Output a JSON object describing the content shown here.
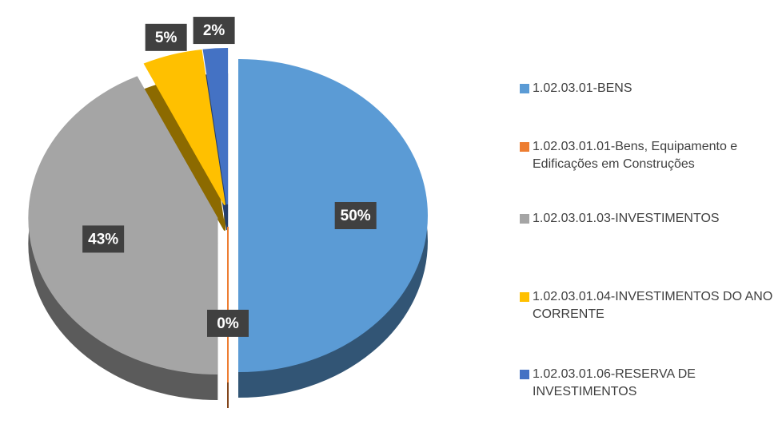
{
  "chart_data": {
    "type": "pie",
    "categories": [
      "1.02.03.01-BENS",
      "1.02.03.01.01-Bens, Equipamento e Edificações em Construções",
      "1.02.03.01.03-INVESTIMENTOS",
      "1.02.03.01.04-INVESTIMENTOS DO ANO CORRENTE",
      "1.02.03.01.06-RESERVA DE INVESTIMENTOS"
    ],
    "values": [
      50,
      0,
      43,
      5,
      2
    ],
    "value_labels": [
      "50%",
      "0%",
      "43%",
      "5%",
      "2%"
    ],
    "colors": [
      "#5b9bd5",
      "#ed7d31",
      "#a5a5a5",
      "#ffc000",
      "#4472c4"
    ],
    "legend": "right"
  }
}
